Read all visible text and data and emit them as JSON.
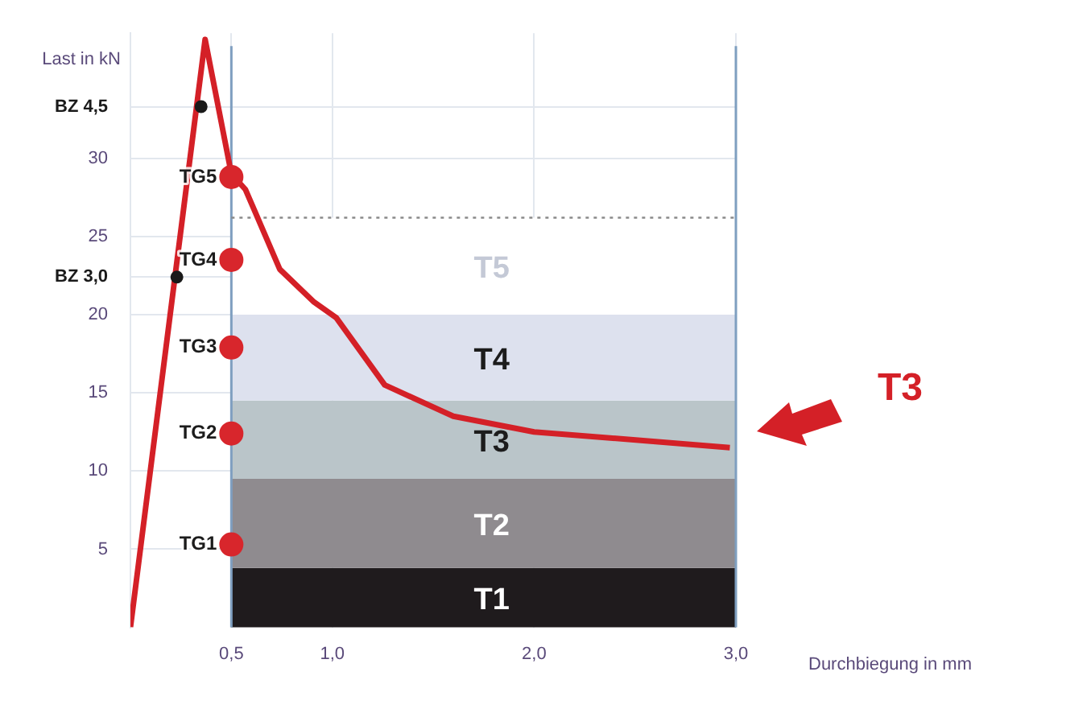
{
  "chart_data": {
    "type": "line",
    "ylabel": "Last in kN",
    "xlabel": "Durchbiegung in mm",
    "xlim": [
      0,
      3
    ],
    "ylim": [
      0,
      38
    ],
    "xticks": [
      {
        "value": 0.5,
        "label": "0,5"
      },
      {
        "value": 1,
        "label": "1,0"
      },
      {
        "value": 2,
        "label": "2,0"
      },
      {
        "value": 3,
        "label": "3,0"
      }
    ],
    "yticks": [
      5,
      10,
      15,
      20,
      {
        "value": 22.4,
        "label": "BZ 3,0"
      },
      25,
      30,
      {
        "value": 33.3,
        "label": "BZ 4,5"
      }
    ],
    "grid": true,
    "legend": false,
    "series": [
      {
        "marker": "none",
        "color": "#d42027",
        "x": [
          0,
          0.37,
          0.5,
          0.57,
          0.74,
          0.91,
          1.02,
          1.26,
          1.6,
          2.0,
          2.97
        ],
        "values": [
          0,
          37.6,
          29,
          28,
          22.9,
          20.8,
          19.8,
          15.5,
          13.5,
          12.5,
          11.5
        ]
      },
      {
        "type": "scatter",
        "marker": "circle",
        "color": "#d8262c",
        "x": [
          0.5,
          0.5,
          0.5,
          0.5,
          0.5
        ],
        "values": [
          5.3,
          12.4,
          17.9,
          23.5,
          28.8
        ],
        "value_labels": [
          "TG1",
          "TG2",
          "TG3",
          "TG4",
          "TG5"
        ]
      },
      {
        "type": "scatter",
        "marker": "circle",
        "color": "#1a1a1a",
        "x": [
          0.23,
          0.35
        ],
        "values": [
          22.4,
          33.3
        ]
      }
    ],
    "bands": [
      {
        "axis": "y",
        "from": 0,
        "to": 3.8,
        "label": "T1",
        "color": "#1f1b1d"
      },
      {
        "axis": "y",
        "from": 3.8,
        "to": 9.5,
        "label": "T2",
        "color": "#8f8b8f"
      },
      {
        "axis": "y",
        "from": 9.5,
        "to": 14.5,
        "label": "T3",
        "color": "#bac5c9"
      },
      {
        "axis": "y",
        "from": 14.5,
        "to": 20,
        "label": "T4",
        "color": "#dde1ee"
      },
      {
        "axis": "y",
        "from": 20,
        "to": 26.2,
        "label": "T5",
        "color": "#ffffff"
      }
    ],
    "ref_lines": [
      {
        "axis": "x",
        "value": 0.5,
        "color": "#7f9fc0",
        "line_style": "solid"
      },
      {
        "axis": "x",
        "value": 3,
        "color": "#7f9fc0",
        "line_style": "solid"
      },
      {
        "axis": "y",
        "value": 26.2,
        "color": "#8a8a8a",
        "line_style": "dotted"
      }
    ],
    "annotations": [
      "T3"
    ]
  }
}
